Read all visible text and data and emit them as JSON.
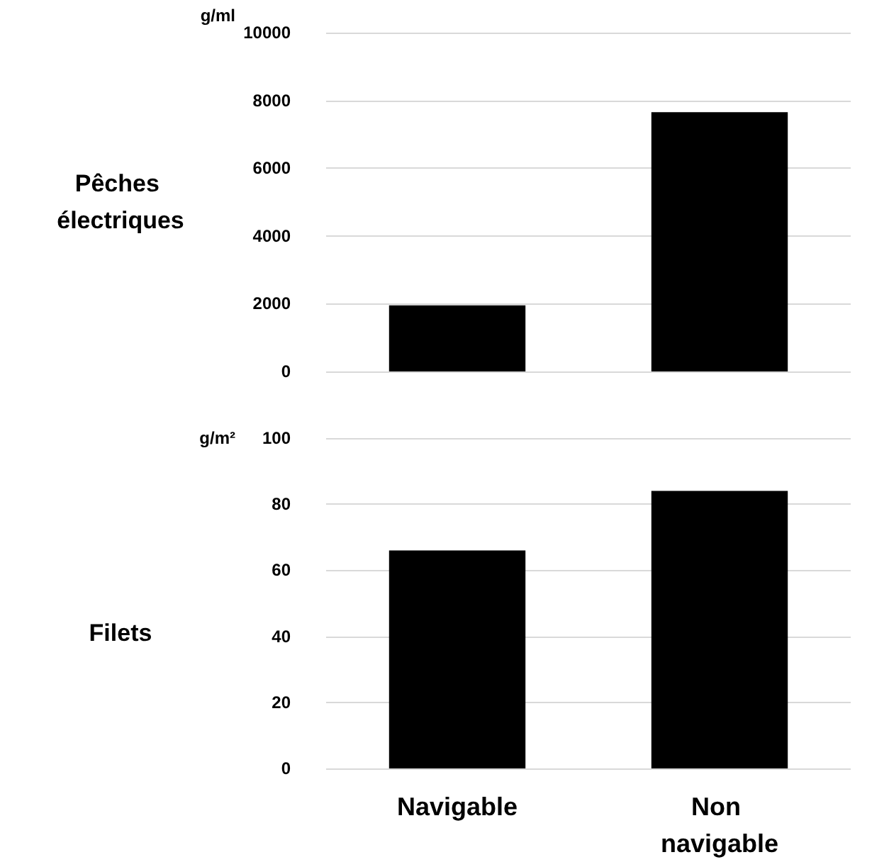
{
  "chart_data": [
    {
      "type": "bar",
      "title": "Pêches électriques",
      "ylabel": "g/ml",
      "categories": [
        "Navigable",
        "Non navigable"
      ],
      "values": [
        1950,
        7650
      ],
      "color": "#000000",
      "ylim": [
        0,
        10000
      ],
      "yticks": [
        0,
        2000,
        4000,
        6000,
        8000,
        10000
      ],
      "grid": "y",
      "tick_labels": "y"
    },
    {
      "type": "bar",
      "title": "Filets",
      "ylabel": "g/m²",
      "categories": [
        "Navigable",
        "Non navigable"
      ],
      "values": [
        66,
        84
      ],
      "color": "#000000",
      "ylim": [
        0,
        100
      ],
      "yticks": [
        0,
        20,
        40,
        60,
        80,
        100
      ],
      "grid": "y"
    }
  ]
}
